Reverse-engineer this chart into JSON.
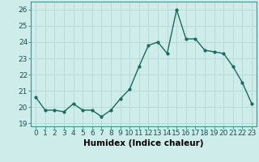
{
  "x": [
    0,
    1,
    2,
    3,
    4,
    5,
    6,
    7,
    8,
    9,
    10,
    11,
    12,
    13,
    14,
    15,
    16,
    17,
    18,
    19,
    20,
    21,
    22,
    23
  ],
  "y": [
    20.6,
    19.8,
    19.8,
    19.7,
    20.2,
    19.8,
    19.8,
    19.4,
    19.8,
    20.5,
    21.1,
    22.5,
    23.8,
    24.0,
    23.3,
    26.0,
    24.2,
    24.2,
    23.5,
    23.4,
    23.3,
    22.5,
    21.5,
    20.2
  ],
  "line_color": "#1a6b5e",
  "marker": "o",
  "marker_size": 2.0,
  "bg_color": "#ceecea",
  "grid_color": "#b8dbd9",
  "xlabel": "Humidex (Indice chaleur)",
  "xlim": [
    -0.5,
    23.5
  ],
  "ylim": [
    18.8,
    26.5
  ],
  "yticks": [
    19,
    20,
    21,
    22,
    23,
    24,
    25,
    26
  ],
  "xticks": [
    0,
    1,
    2,
    3,
    4,
    5,
    6,
    7,
    8,
    9,
    10,
    11,
    12,
    13,
    14,
    15,
    16,
    17,
    18,
    19,
    20,
    21,
    22,
    23
  ],
  "tick_fontsize": 6.5,
  "label_fontsize": 7.5,
  "line_width": 1.0
}
